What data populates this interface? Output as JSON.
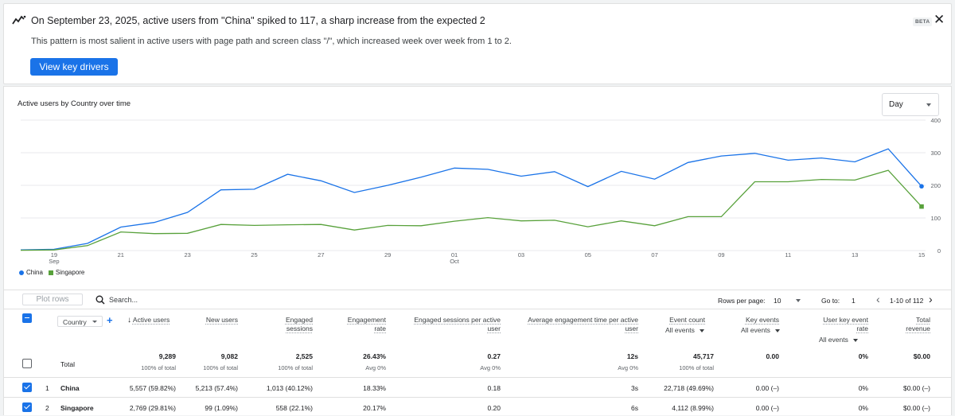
{
  "insight": {
    "headline": "On September 23, 2025, active users from \"China\" spiked to 117, a sharp increase from the expected 2",
    "detail": "This pattern is most salient in active users with page path and screen class \"/\", which increased week over week from 1 to 2.",
    "beta": "BETA",
    "close": "✕",
    "button": "View key drivers"
  },
  "chart": {
    "title": "Active users by Country over time",
    "granularity": "Day",
    "y_ticks": [
      "0",
      "100",
      "200",
      "300",
      "400"
    ],
    "x_ticks": [
      {
        "day": "19",
        "month": "Sep"
      },
      {
        "day": "21",
        "month": ""
      },
      {
        "day": "23",
        "month": ""
      },
      {
        "day": "25",
        "month": ""
      },
      {
        "day": "27",
        "month": ""
      },
      {
        "day": "29",
        "month": ""
      },
      {
        "day": "01",
        "month": "Oct"
      },
      {
        "day": "03",
        "month": ""
      },
      {
        "day": "05",
        "month": ""
      },
      {
        "day": "07",
        "month": ""
      },
      {
        "day": "09",
        "month": ""
      },
      {
        "day": "11",
        "month": ""
      },
      {
        "day": "13",
        "month": ""
      },
      {
        "day": "15",
        "month": ""
      }
    ],
    "legend": [
      "China",
      "Singapore"
    ],
    "colors": {
      "china": "#1a73e8",
      "singapore": "#58a13b"
    }
  },
  "chart_data": {
    "type": "line",
    "x": [
      "Sep 18",
      "Sep 19",
      "Sep 20",
      "Sep 21",
      "Sep 22",
      "Sep 23",
      "Sep 24",
      "Sep 25",
      "Sep 26",
      "Sep 27",
      "Sep 28",
      "Sep 29",
      "Sep 30",
      "Oct 01",
      "Oct 02",
      "Oct 03",
      "Oct 04",
      "Oct 05",
      "Oct 06",
      "Oct 07",
      "Oct 08",
      "Oct 09",
      "Oct 10",
      "Oct 11",
      "Oct 12",
      "Oct 13",
      "Oct 14",
      "Oct 15"
    ],
    "series": [
      {
        "name": "China",
        "values": [
          2,
          4,
          22,
          72,
          86,
          117,
          186,
          188,
          234,
          214,
          178,
          200,
          225,
          253,
          249,
          228,
          242,
          196,
          243,
          219,
          270,
          290,
          298,
          277,
          284,
          272,
          312,
          197
        ]
      },
      {
        "name": "Singapore",
        "values": [
          1,
          2,
          15,
          57,
          52,
          53,
          80,
          77,
          79,
          80,
          63,
          77,
          76,
          90,
          101,
          91,
          93,
          73,
          91,
          76,
          104,
          104,
          211,
          211,
          218,
          216,
          246,
          135
        ]
      }
    ],
    "ylim": [
      0,
      400
    ],
    "y_ticks": [
      0,
      100,
      200,
      300,
      400
    ],
    "grid": true,
    "legend_position": "bottom-left"
  },
  "toolbar": {
    "plot_rows": "Plot rows",
    "search_placeholder": "Search...",
    "rows_per_page_label": "Rows per page:",
    "rows_per_page": "10",
    "go_to_label": "Go to:",
    "go_to": "1",
    "range": "1-10 of 112"
  },
  "table": {
    "dimension": "Country",
    "headers": {
      "active_users": "Active users",
      "new_users": "New users",
      "engaged_sessions": [
        "Engaged",
        "sessions"
      ],
      "engagement_rate": [
        "Engagement",
        "rate"
      ],
      "engaged_per_user": [
        "Engaged sessions per active",
        "user"
      ],
      "avg_engagement_time": [
        "Average engagement time per active",
        "user"
      ],
      "event_count": "Event count",
      "key_events": "Key events",
      "user_key_event_rate": [
        "User key event",
        "rate"
      ],
      "total_revenue": [
        "Total",
        "revenue"
      ]
    },
    "event_filter": "All events",
    "total": {
      "label": "Total",
      "active_users": "9,289",
      "active_users_sub": "100% of total",
      "new_users": "9,082",
      "new_users_sub": "100% of total",
      "engaged_sessions": "2,525",
      "engaged_sessions_sub": "100% of total",
      "engagement_rate": "26.43%",
      "engagement_rate_sub": "Avg 0%",
      "engaged_per_user": "0.27",
      "engaged_per_user_sub": "Avg 0%",
      "avg_time": "12s",
      "avg_time_sub": "Avg 0%",
      "event_count": "45,717",
      "event_count_sub": "100% of total",
      "key_events": "0.00",
      "user_key_event_rate": "0%",
      "revenue": "$0.00"
    },
    "rows": [
      {
        "rank": "1",
        "country": "China",
        "active_users": "5,557 (59.82%)",
        "new_users": "5,213 (57.4%)",
        "engaged_sessions": "1,013 (40.12%)",
        "engagement_rate": "18.33%",
        "engaged_per_user": "0.18",
        "avg_time": "3s",
        "event_count": "22,718 (49.69%)",
        "key_events": "0.00 (–)",
        "user_key_event_rate": "0%",
        "revenue": "$0.00 (–)"
      },
      {
        "rank": "2",
        "country": "Singapore",
        "active_users": "2,769 (29.81%)",
        "new_users": "99 (1.09%)",
        "engaged_sessions": "558 (22.1%)",
        "engagement_rate": "20.17%",
        "engaged_per_user": "0.20",
        "avg_time": "6s",
        "event_count": "4,112 (8.99%)",
        "key_events": "0.00 (–)",
        "user_key_event_rate": "0%",
        "revenue": "$0.00 (–)"
      }
    ]
  }
}
